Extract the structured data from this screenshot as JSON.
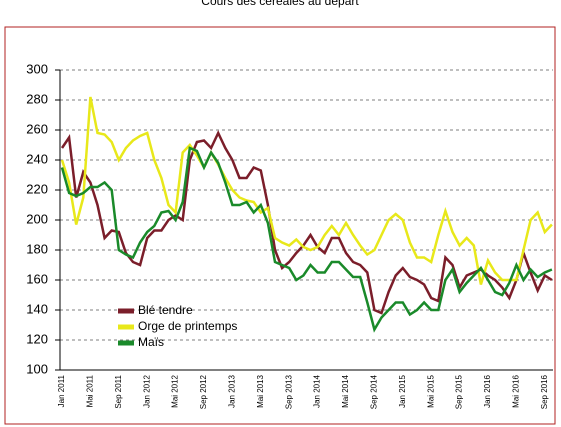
{
  "chart_data": {
    "type": "line",
    "title": "Cours des céréales au départ",
    "categories": [
      "Jan 2011",
      null,
      null,
      null,
      "Mai 2011",
      null,
      null,
      null,
      "Sep 2011",
      null,
      null,
      null,
      "Jan 2012",
      null,
      null,
      null,
      "Mai 2012",
      null,
      null,
      null,
      "Sep 2012",
      null,
      null,
      null,
      "Jan 2013",
      null,
      null,
      null,
      "Mai 2013",
      null,
      null,
      null,
      "Sep 2013",
      null,
      null,
      null,
      "Jan 2014",
      null,
      null,
      null,
      "Mai 2014",
      null,
      null,
      null,
      "Sep 2014",
      null,
      null,
      null,
      "Jan 2015",
      null,
      null,
      null,
      "Mai 2015",
      null,
      null,
      null,
      "Sep 2015",
      null,
      null,
      null,
      "Jan 2016",
      null,
      null,
      null,
      "Mai 2016",
      null,
      null,
      null,
      "Sep 2016",
      null
    ],
    "series": [
      {
        "name": "Blé tendre",
        "color": "#7b1e2a",
        "values": [
          248,
          255,
          215,
          232,
          225,
          210,
          188,
          193,
          192,
          178,
          172,
          170,
          188,
          193,
          193,
          200,
          203,
          200,
          240,
          252,
          253,
          248,
          258,
          248,
          240,
          228,
          228,
          235,
          233,
          210,
          180,
          168,
          172,
          178,
          183,
          190,
          182,
          178,
          188,
          188,
          178,
          172,
          170,
          165,
          140,
          138,
          152,
          163,
          168,
          162,
          160,
          157,
          148,
          146,
          175,
          170,
          155,
          163,
          165,
          167,
          163,
          160,
          155,
          148,
          160,
          178,
          165,
          153,
          163,
          160
        ]
      },
      {
        "name": "Orge de printemps",
        "color": "#e8e81a",
        "values": [
          240,
          225,
          197,
          215,
          282,
          258,
          257,
          252,
          240,
          248,
          253,
          256,
          258,
          240,
          228,
          210,
          205,
          245,
          250,
          243,
          235,
          245,
          237,
          228,
          220,
          215,
          213,
          212,
          205,
          208,
          188,
          185,
          183,
          187,
          182,
          180,
          182,
          190,
          196,
          190,
          198,
          190,
          183,
          177,
          180,
          190,
          200,
          204,
          200,
          185,
          175,
          175,
          172,
          190,
          206,
          192,
          183,
          188,
          183,
          157,
          173,
          165,
          160,
          160,
          160,
          180,
          200,
          205,
          192,
          197
        ]
      },
      {
        "name": "Maïs",
        "color": "#1a8a2a",
        "values": [
          235,
          218,
          216,
          218,
          222,
          222,
          225,
          220,
          180,
          177,
          175,
          185,
          192,
          196,
          205,
          206,
          200,
          212,
          248,
          246,
          235,
          245,
          238,
          225,
          210,
          210,
          212,
          205,
          210,
          198,
          172,
          170,
          168,
          160,
          163,
          170,
          165,
          165,
          172,
          172,
          167,
          162,
          162,
          145,
          127,
          135,
          140,
          145,
          145,
          137,
          140,
          145,
          140,
          140,
          160,
          167,
          152,
          158,
          163,
          168,
          160,
          152,
          150,
          158,
          170,
          160,
          167,
          162,
          165,
          167
        ]
      }
    ],
    "ylim": [
      100,
      300
    ],
    "yticks": [
      100,
      120,
      140,
      160,
      180,
      200,
      220,
      240,
      260,
      280,
      300
    ],
    "grid": true,
    "legend_position": "lower left"
  }
}
